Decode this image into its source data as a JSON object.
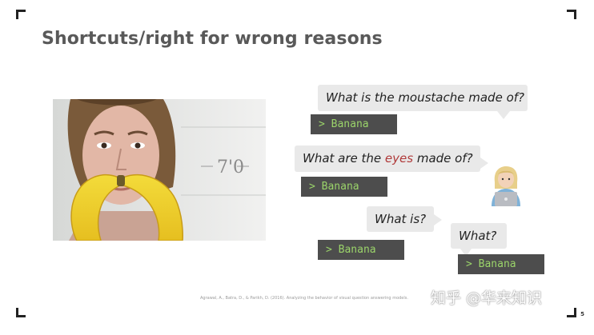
{
  "slide": {
    "title": "Shortcuts/right for wrong reasons",
    "page_number": "5",
    "citation": "Agrawal, A., Batra, D., & Parikh, D. (2016). Analyzing the behavior of visual question answering models.",
    "watermark": "知乎 @华来知识"
  },
  "photo": {
    "wall_text": "7'0"
  },
  "dialog": {
    "q1": "What is the moustache made of?",
    "a1": "> Banana",
    "q2_before": "What are the ",
    "q2_highlight": "eyes",
    "q2_after": " made of?",
    "a2": "> Banana",
    "q3": "What is?",
    "a3": "> Banana",
    "q4": "What?",
    "a4": "> Banana"
  },
  "colors": {
    "bubble_bg": "#e9e9e9",
    "answer_bg": "#4d4d4d",
    "answer_text": "#9bd46a",
    "highlight": "#b03a3a"
  },
  "icons": {
    "person": "person-with-laptop-icon"
  }
}
